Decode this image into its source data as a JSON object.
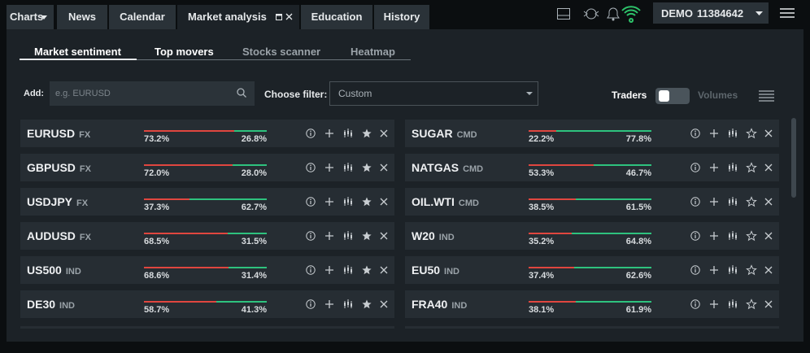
{
  "nav": {
    "tabs": [
      "Charts",
      "News",
      "Calendar",
      "Market analysis",
      "Education",
      "History"
    ],
    "account_type": "DEMO",
    "account_number": "11384642"
  },
  "subtabs": [
    "Market sentiment",
    "Top movers",
    "Stocks scanner",
    "Heatmap"
  ],
  "filter": {
    "add_label": "Add:",
    "add_placeholder": "e.g. EURUSD",
    "filter_label": "Choose filter:",
    "filter_value": "Custom",
    "toggle_left": "Traders",
    "toggle_right": "Volumes"
  },
  "columns": [
    [
      {
        "symbol": "EURUSD",
        "kind": "FX",
        "sell": {
          "value": 73.2,
          "label": "73.2%"
        },
        "buy": {
          "value": 26.8,
          "label": "26.8%"
        },
        "favorite": true
      },
      {
        "symbol": "GBPUSD",
        "kind": "FX",
        "sell": {
          "value": 72.0,
          "label": "72.0%"
        },
        "buy": {
          "value": 28.0,
          "label": "28.0%"
        },
        "favorite": true
      },
      {
        "symbol": "USDJPY",
        "kind": "FX",
        "sell": {
          "value": 37.3,
          "label": "37.3%"
        },
        "buy": {
          "value": 62.7,
          "label": "62.7%"
        },
        "favorite": true
      },
      {
        "symbol": "AUDUSD",
        "kind": "FX",
        "sell": {
          "value": 68.5,
          "label": "68.5%"
        },
        "buy": {
          "value": 31.5,
          "label": "31.5%"
        },
        "favorite": true
      },
      {
        "symbol": "US500",
        "kind": "IND",
        "sell": {
          "value": 68.6,
          "label": "68.6%"
        },
        "buy": {
          "value": 31.4,
          "label": "31.4%"
        },
        "favorite": true
      },
      {
        "symbol": "DE30",
        "kind": "IND",
        "sell": {
          "value": 58.7,
          "label": "58.7%"
        },
        "buy": {
          "value": 41.3,
          "label": "41.3%"
        },
        "favorite": true
      }
    ],
    [
      {
        "symbol": "SUGAR",
        "kind": "CMD",
        "sell": {
          "value": 22.2,
          "label": "22.2%"
        },
        "buy": {
          "value": 77.8,
          "label": "77.8%"
        },
        "favorite": false
      },
      {
        "symbol": "NATGAS",
        "kind": "CMD",
        "sell": {
          "value": 53.3,
          "label": "53.3%"
        },
        "buy": {
          "value": 46.7,
          "label": "46.7%"
        },
        "favorite": false
      },
      {
        "symbol": "OIL.WTI",
        "kind": "CMD",
        "sell": {
          "value": 38.5,
          "label": "38.5%"
        },
        "buy": {
          "value": 61.5,
          "label": "61.5%"
        },
        "favorite": false
      },
      {
        "symbol": "W20",
        "kind": "IND",
        "sell": {
          "value": 35.2,
          "label": "35.2%"
        },
        "buy": {
          "value": 64.8,
          "label": "64.8%"
        },
        "favorite": false
      },
      {
        "symbol": "EU50",
        "kind": "IND",
        "sell": {
          "value": 37.4,
          "label": "37.4%"
        },
        "buy": {
          "value": 62.6,
          "label": "62.6%"
        },
        "favorite": false
      },
      {
        "symbol": "FRA40",
        "kind": "IND",
        "sell": {
          "value": 38.1,
          "label": "38.1%"
        },
        "buy": {
          "value": 61.9,
          "label": "61.9%"
        },
        "favorite": false
      }
    ]
  ]
}
